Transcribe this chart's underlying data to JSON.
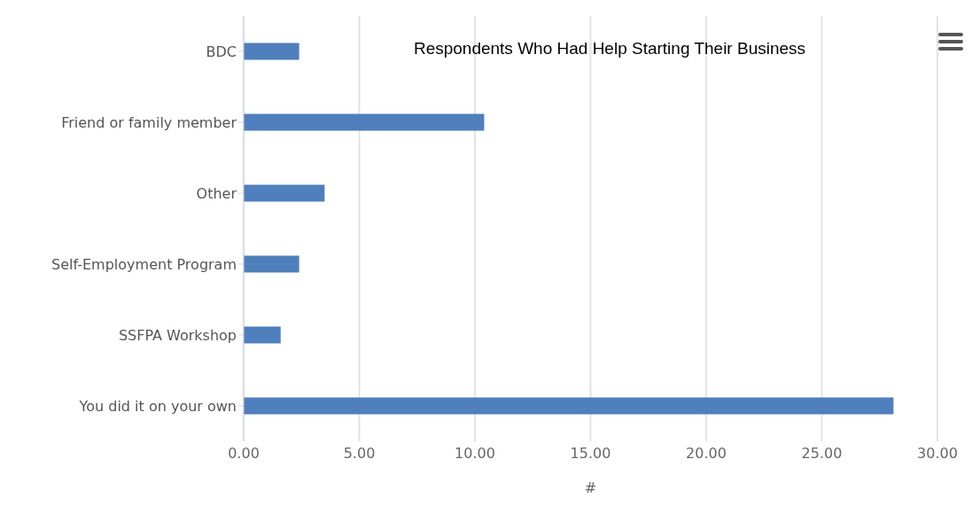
{
  "chart_data": {
    "type": "bar",
    "orientation": "horizontal",
    "title": "Respondents Who Had Help Starting Their Business",
    "xlabel": "#",
    "categories": [
      "BDC",
      "Friend or family member",
      "Other",
      "Self-Employment Program",
      "SSFPA Workshop",
      "You did it on your own"
    ],
    "values": [
      2.4,
      10.4,
      3.5,
      2.4,
      1.6,
      28.1
    ],
    "color": "#4f7fbc",
    "xlim": [
      0,
      30
    ],
    "xticks": [
      {
        "value": 0,
        "label": "0.00"
      },
      {
        "value": 5,
        "label": "5.00"
      },
      {
        "value": 10,
        "label": "10.00"
      },
      {
        "value": 15,
        "label": "15.00"
      },
      {
        "value": 20,
        "label": "20.00"
      },
      {
        "value": 25,
        "label": "25.00"
      },
      {
        "value": 30,
        "label": "30.00"
      }
    ],
    "grid": "x"
  }
}
